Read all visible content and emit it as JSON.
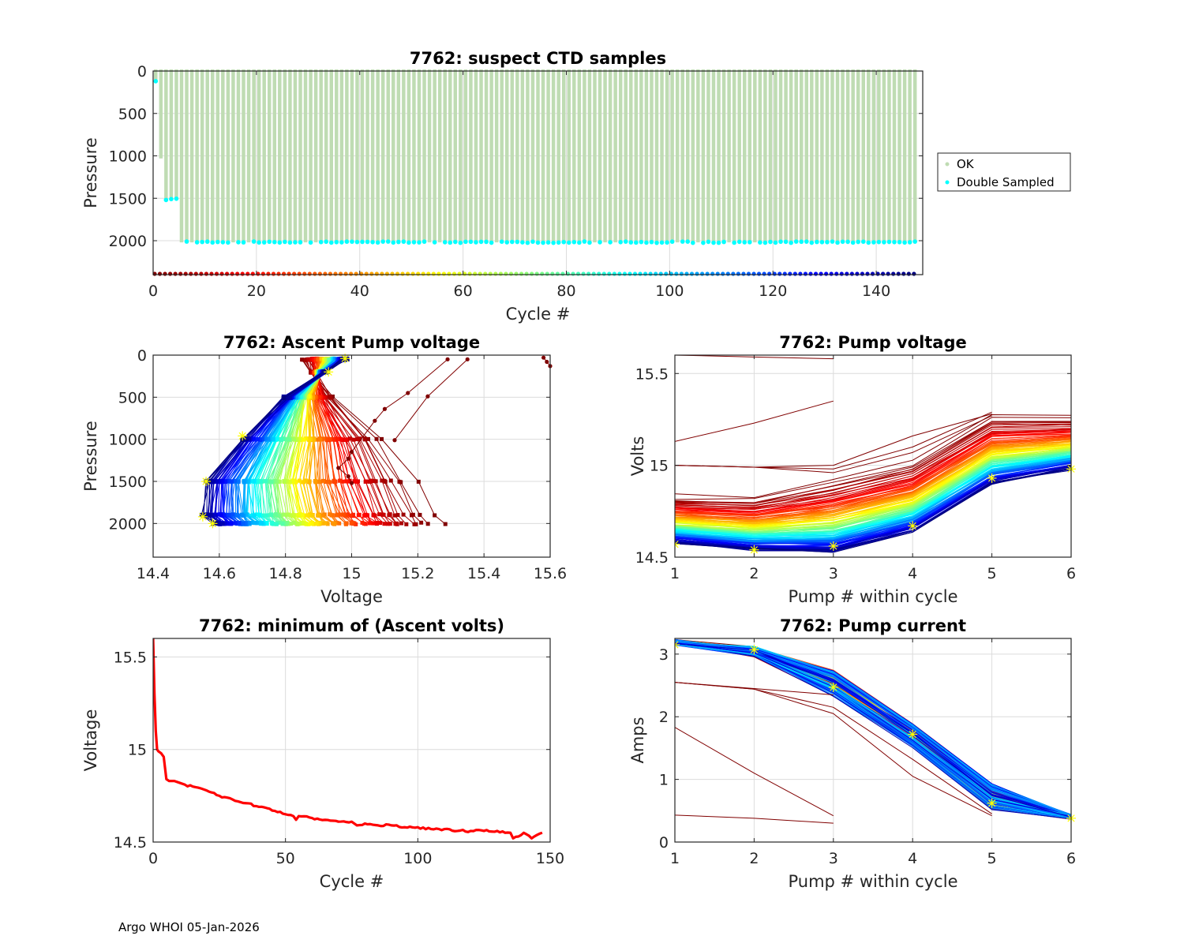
{
  "footer": "Argo WHOI 05-Jan-2026",
  "chart_data": [
    {
      "id": "ctd",
      "type": "scatter",
      "title": "7762: suspect CTD samples",
      "xlabel": "Cycle #",
      "ylabel": "Pressure",
      "xlim": [
        0,
        149
      ],
      "ylim": [
        0,
        2400
      ],
      "y_reversed": true,
      "xticks": [
        0,
        20,
        40,
        60,
        80,
        100,
        120,
        140
      ],
      "yticks": [
        0,
        500,
        1000,
        1500,
        2000
      ],
      "grid": true,
      "legend": {
        "placement": "outside-right",
        "entries": [
          {
            "label": "OK",
            "color": "#bfdcb3"
          },
          {
            "label": "Double Sampled",
            "color": "#00ffff"
          }
        ]
      },
      "ok_profiles": {
        "cycles": "1-148",
        "top_pressure": 0,
        "max_pressure_by_cycle": {
          "1": 120,
          "2": 1030,
          "3": 1520,
          "4": 1510,
          "5": 1500,
          "default": 2020
        }
      },
      "double_sampled": {
        "points": [
          [
            1,
            120
          ],
          [
            3,
            1520
          ],
          [
            4,
            1510
          ],
          [
            5,
            1505
          ]
        ],
        "deep_level": 2010,
        "deep_cycles": "6-148 (most)"
      },
      "cycle_markers": {
        "pressure": 2400,
        "colormap": "jet-reversed",
        "cycles": "1-148"
      }
    },
    {
      "id": "ascent",
      "type": "line",
      "title": "7762: Ascent Pump voltage",
      "xlabel": "Voltage",
      "ylabel": "Pressure",
      "xlim": [
        14.4,
        15.6
      ],
      "ylim": [
        0,
        2400
      ],
      "y_reversed": true,
      "xticks": [
        14.4,
        14.6,
        14.8,
        15.0,
        15.2,
        15.4,
        15.6
      ],
      "xticklabels": [
        "14.4",
        "14.6",
        "14.8",
        "15",
        "15.2",
        "15.4",
        "15.6"
      ],
      "yticks": [
        0,
        500,
        1000,
        1500,
        2000
      ],
      "grid": true,
      "colormap": "jet (early cycles dark red, late cycles dark blue)",
      "pressure_levels": [
        2000,
        1900,
        1500,
        1000,
        500,
        200,
        50
      ],
      "envelope_early": [
        15.28,
        15.26,
        15.2,
        15.1,
        14.95,
        14.88,
        14.85
      ],
      "envelope_late": [
        14.58,
        14.55,
        14.56,
        14.67,
        14.8,
        14.92,
        14.98
      ],
      "outliers": [
        {
          "points": [
            [
              15.13,
              1010
            ],
            [
              15.23,
              490
            ],
            [
              15.35,
              50
            ]
          ]
        },
        {
          "points": [
            [
              15.0,
              1520
            ],
            [
              14.99,
              1440
            ],
            [
              14.96,
              1340
            ],
            [
              14.99,
              1230
            ],
            [
              15.0,
              1150
            ],
            [
              15.07,
              780
            ],
            [
              15.1,
              640
            ],
            [
              15.17,
              450
            ],
            [
              15.29,
              50
            ]
          ]
        },
        {
          "points": [
            [
              15.58,
              30
            ],
            [
              15.59,
              80
            ],
            [
              15.6,
              130
            ]
          ]
        }
      ],
      "highlight_stars": [
        [
          14.58,
          2000
        ],
        [
          14.55,
          1920
        ],
        [
          14.56,
          1500
        ],
        [
          14.67,
          960
        ],
        [
          14.93,
          200
        ],
        [
          14.98,
          40
        ]
      ]
    },
    {
      "id": "pumpv",
      "type": "line",
      "title": "7762: Pump voltage",
      "xlabel": "Pump # within cycle",
      "ylabel": "Volts",
      "xlim": [
        1,
        6
      ],
      "ylim": [
        14.5,
        15.6
      ],
      "xticks": [
        1,
        2,
        3,
        4,
        5,
        6
      ],
      "yticks": [
        14.5,
        15.0,
        15.5
      ],
      "yticklabels": [
        "14.5",
        "15",
        "15.5"
      ],
      "grid": true,
      "colormap": "jet (early cycles dark red, late cycles dark blue)",
      "envelope_early": [
        14.84,
        14.83,
        14.93,
        15.03,
        15.28,
        15.27
      ],
      "envelope_late": [
        14.58,
        14.54,
        14.53,
        14.64,
        14.9,
        14.98
      ],
      "outliers": [
        [
          15.6,
          15.59,
          15.58
        ],
        [
          15.13,
          15.23,
          15.35
        ],
        [
          15.0,
          14.99,
          15.0,
          15.16,
          15.28
        ],
        [
          15.0,
          14.99,
          14.96,
          15.07,
          15.27
        ],
        [
          15.0,
          14.99,
          14.98,
          15.1,
          15.29
        ]
      ],
      "highlight_stars": [
        [
          1,
          14.57
        ],
        [
          2,
          14.54
        ],
        [
          3,
          14.56
        ],
        [
          4,
          14.67
        ],
        [
          5,
          14.93
        ],
        [
          6,
          14.98
        ]
      ]
    },
    {
      "id": "minv",
      "type": "line",
      "title": "7762: minimum of (Ascent volts)",
      "xlabel": "Cycle #",
      "ylabel": "Voltage",
      "xlim": [
        0,
        150
      ],
      "ylim": [
        14.5,
        15.6
      ],
      "xticks": [
        0,
        50,
        100,
        150
      ],
      "yticks": [
        14.5,
        15.0,
        15.5
      ],
      "yticklabels": [
        "14.5",
        "15",
        "15.5"
      ],
      "grid": true,
      "color": "#ff0000",
      "series": {
        "x": [
          0,
          0.5,
          1,
          1.5,
          2,
          3,
          4,
          5,
          6,
          8,
          10,
          12,
          15,
          18,
          20,
          25,
          30,
          35,
          40,
          45,
          50,
          53,
          54,
          55,
          60,
          65,
          70,
          75,
          77,
          80,
          85,
          90,
          95,
          100,
          105,
          110,
          115,
          120,
          125,
          130,
          135,
          136,
          140,
          143,
          144,
          147
        ],
        "y": [
          15.6,
          15.3,
          15.1,
          15.0,
          14.99,
          14.98,
          14.96,
          14.84,
          14.83,
          14.83,
          14.82,
          14.81,
          14.8,
          14.79,
          14.78,
          14.75,
          14.73,
          14.71,
          14.69,
          14.67,
          14.65,
          14.64,
          14.62,
          14.64,
          14.63,
          14.62,
          14.61,
          14.61,
          14.59,
          14.6,
          14.59,
          14.59,
          14.58,
          14.58,
          14.57,
          14.57,
          14.56,
          14.56,
          14.56,
          14.56,
          14.55,
          14.52,
          14.55,
          14.52,
          14.53,
          14.55
        ]
      }
    },
    {
      "id": "pumpc",
      "type": "line",
      "title": "7762: Pump current",
      "xlabel": "Pump # within cycle",
      "ylabel": "Amps",
      "xlim": [
        1,
        6
      ],
      "ylim": [
        0,
        3.25
      ],
      "xticks": [
        1,
        2,
        3,
        4,
        5,
        6
      ],
      "yticks": [
        0,
        1,
        2,
        3
      ],
      "grid": true,
      "colormap": "jet (mostly dark blue bundle)",
      "envelope_high": [
        3.22,
        3.12,
        2.8,
        1.95,
        1.0,
        0.42
      ],
      "envelope_low": [
        3.15,
        2.95,
        2.25,
        1.45,
        0.45,
        0.38
      ],
      "outliers": [
        [
          2.55,
          2.45,
          2.35
        ],
        [
          2.55,
          2.44,
          2.15,
          1.32,
          0.45
        ],
        [
          2.55,
          2.44,
          2.05,
          1.05,
          0.42
        ],
        [
          1.83,
          1.1,
          0.42
        ],
        [
          0.43,
          0.38,
          0.3
        ]
      ],
      "highlight_stars": [
        [
          1,
          3.15
        ],
        [
          2,
          3.07
        ],
        [
          3,
          2.47
        ],
        [
          4,
          1.72
        ],
        [
          5,
          0.62
        ],
        [
          6,
          0.38
        ]
      ]
    }
  ]
}
